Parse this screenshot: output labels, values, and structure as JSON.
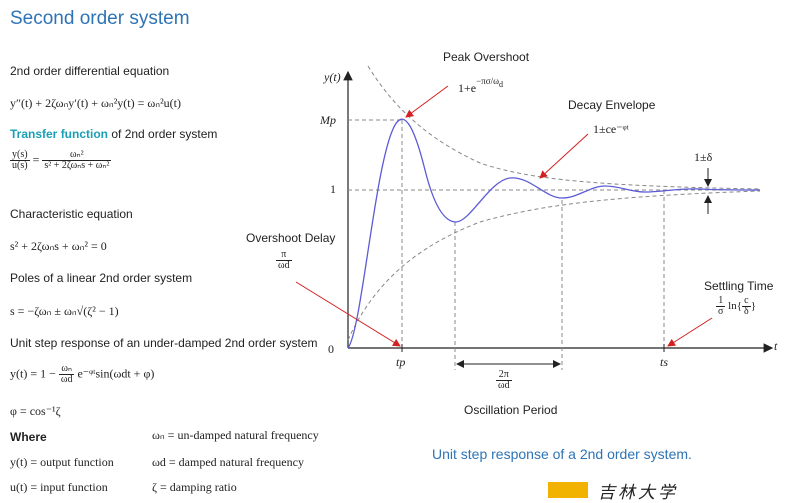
{
  "title": "Second order system",
  "left": {
    "l1": "2nd order differential equation",
    "l2_eq": "y″(t) + 2ζωₙy′(t) + ωₙ²y(t) = ωₙ²u(t)",
    "tf_highlight": "Transfer function",
    "tf_rest": " of 2nd order system",
    "tf_lhs_num": "y(s)",
    "tf_lhs_den": "u(s)",
    "tf_num": "ωₙ²",
    "tf_den": "s² + 2ζωₙs + ωₙ²",
    "char_label": "Characteristic equation",
    "char_eq": "s² + 2ζωₙs + ωₙ² = 0",
    "poles_label": "Poles of a linear 2nd order system",
    "poles_eq": "s = −ζωₙ ± ωₙ√(ζ² − 1)",
    "step_label": "Unit step response of an under-damped 2nd order system",
    "step_eq_a": "y(t) = 1 −",
    "step_frac_num": "ωₙ",
    "step_frac_den": "ωd",
    "step_eq_b": "e⁻ᵠᵗsin(ωdt + φ)",
    "phi_eq": "φ = cos⁻¹ζ",
    "where": "Where",
    "defs": [
      {
        "a": "y(t) = output function",
        "b": "ωd = damped natural frequency"
      },
      {
        "a": "u(t) = input function",
        "b": "ζ = damping ratio"
      }
    ],
    "wn_def": "ωₙ = un-damped natural frequency"
  },
  "graph": {
    "ylabel": "y(t)",
    "xlabel": "t",
    "mp": "Mp",
    "one": "1",
    "zero": "0",
    "tp": "tp",
    "ts": "ts",
    "peak_overshoot": "Peak Overshoot",
    "peak_formula": "1+e",
    "decay_envelope": "Decay Envelope",
    "decay_formula": "1±ce⁻ᵠᵗ",
    "delta": "1±δ",
    "overshoot_delay": "Overshoot Delay",
    "od_num": "π",
    "od_den": "ωd",
    "settling_time": "Settling Time",
    "period_num": "2π",
    "period_den": "ωd",
    "oscillation_period": "Oscillation Period"
  },
  "caption": "Unit step response of a 2nd order system.",
  "logo_text": "吉林大学"
}
